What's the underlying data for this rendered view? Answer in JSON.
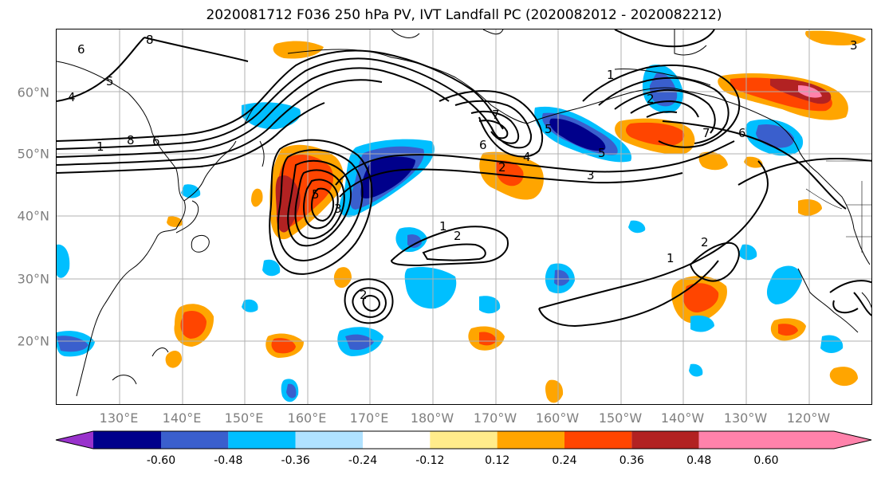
{
  "title": "2020081712 F036 250 hPa PV, IVT Landfall PC (2020082012 - 2020082212)",
  "lat_ticks": [
    {
      "label": "60°N",
      "lat": 60
    },
    {
      "label": "50°N",
      "lat": 50
    },
    {
      "label": "40°N",
      "lat": 40
    },
    {
      "label": "30°N",
      "lat": 30
    },
    {
      "label": "20°N",
      "lat": 20
    }
  ],
  "lon_ticks": [
    {
      "label": "130°E",
      "lon": 130
    },
    {
      "label": "140°E",
      "lon": 140
    },
    {
      "label": "150°E",
      "lon": 150
    },
    {
      "label": "160°E",
      "lon": 160
    },
    {
      "label": "170°E",
      "lon": 170
    },
    {
      "label": "180°W",
      "lon": 180
    },
    {
      "label": "170°W",
      "lon": 190
    },
    {
      "label": "160°W",
      "lon": 200
    },
    {
      "label": "150°W",
      "lon": 210
    },
    {
      "label": "140°W",
      "lon": 220
    },
    {
      "label": "130°W",
      "lon": 230
    },
    {
      "label": "120°W",
      "lon": 240
    }
  ],
  "colorbar": {
    "colors": [
      "#9932cc",
      "#00008b",
      "#3a5fcd",
      "#00bfff",
      "#b0e2ff",
      "#ffffff",
      "#ffec8b",
      "#ffa500",
      "#ff4500",
      "#b22222",
      "#ff82ab"
    ],
    "ticks": [
      "-0.60",
      "-0.48",
      "-0.36",
      "-0.24",
      "-0.12",
      "0.12",
      "0.24",
      "0.36",
      "0.48",
      "0.60"
    ]
  },
  "contour_labels": [
    "8",
    "6",
    "5",
    "4",
    "1",
    "8",
    "6",
    "5",
    "2",
    "3",
    "1",
    "6",
    "7",
    "5",
    "2",
    "1",
    "2",
    "2",
    "1",
    "4",
    "5",
    "3",
    "2",
    "7",
    "6",
    "3"
  ],
  "colors": {
    "land_outline": "#000000",
    "grid": "#b0b0b0",
    "contour": "#000000",
    "tick_label": "#7f7f7f"
  }
}
